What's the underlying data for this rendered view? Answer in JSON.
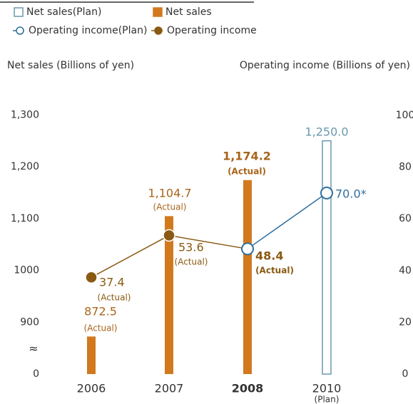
{
  "chart_data": {
    "type": "bar_line",
    "ylabel": "Net sales (Billions of yen)",
    "y2label": "Operating income (Billions of yen)",
    "categories": [
      "2006",
      "2007",
      "2008",
      "2010"
    ],
    "category_sublabels": [
      null,
      null,
      null,
      "(Plan)"
    ],
    "highlight_index": 2,
    "ylim": [
      0,
      1300
    ],
    "ybreak": [
      0,
      800
    ],
    "ybreak_label": "≈",
    "yticks": [
      0,
      900,
      1000,
      {
        "value": 1100,
        "label": "1,100"
      },
      {
        "value": 1200,
        "label": "1,200"
      },
      {
        "value": 1300,
        "label": "1,300"
      }
    ],
    "y2lim": [
      0,
      100
    ],
    "y2ticks": [
      0,
      20,
      40,
      60,
      80,
      100
    ],
    "series": [
      {
        "name": "Net sales(Plan)",
        "kind": "bar",
        "hollow": true,
        "color": "#6a98ad",
        "values": [
          null,
          null,
          null,
          1250.0
        ],
        "value_labels": [
          null,
          null,
          null,
          "1,250.0"
        ],
        "value_notes": [
          null,
          null,
          null,
          null
        ]
      },
      {
        "name": "Net sales",
        "kind": "bar",
        "hollow": false,
        "color": "#d2791e",
        "values": [
          872.5,
          1104.7,
          1174.2,
          null
        ],
        "value_labels": [
          "872.5",
          "1,104.7",
          "1,174.2",
          null
        ],
        "value_notes": [
          "(Actual)",
          "(Actual)",
          "(Actual)",
          null
        ]
      },
      {
        "name": "Operating income(Plan)",
        "kind": "line",
        "hollow": true,
        "axis": "y2",
        "color": "#2f6f9f",
        "values": [
          null,
          null,
          48.4,
          70.0
        ],
        "value_labels": [
          null,
          null,
          null,
          "70.0*"
        ],
        "value_notes": [
          null,
          null,
          null,
          null
        ]
      },
      {
        "name": "Operating income",
        "kind": "line",
        "hollow": false,
        "axis": "y2",
        "color": "#8a5a12",
        "values": [
          37.4,
          53.6,
          48.4,
          null
        ],
        "value_labels": [
          "37.4",
          "53.6",
          "48.4",
          null
        ],
        "value_notes": [
          "(Actual)",
          "(Actual)",
          "(Actual)",
          null
        ]
      }
    ]
  }
}
